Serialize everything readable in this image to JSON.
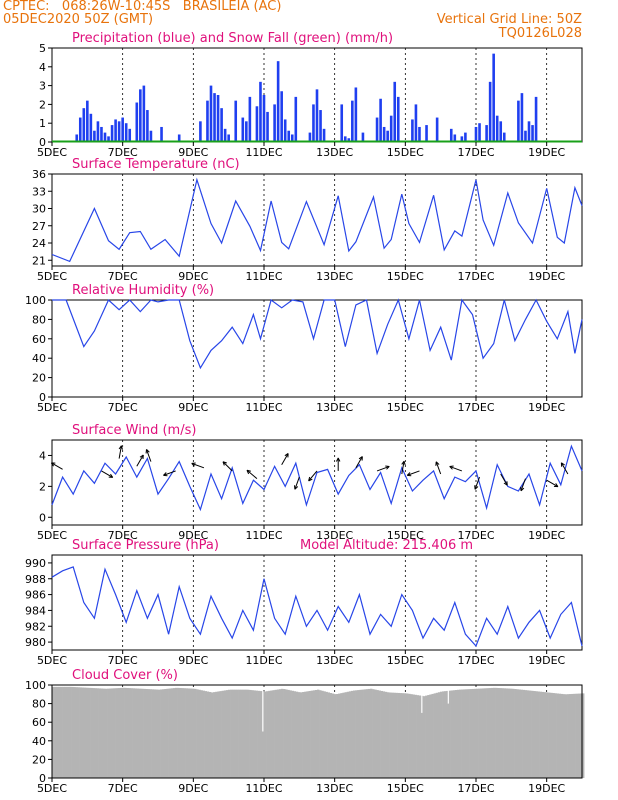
{
  "header": {
    "line1": "CPTEC:   068:26W-10:45S   BRASILEIA (AC)",
    "line2": "05DEC2020 50Z (GMT)",
    "right1": "Vertical Grid Line: 50Z",
    "right2": "TQ0126L028"
  },
  "colors": {
    "header_text": "#e8730c",
    "panel_title": "#e0107c",
    "precip": "#1f3ff0",
    "snow": "#19a019",
    "line": "#2846e8",
    "cloud": "#b4b4b4"
  },
  "chart_data": [
    {
      "type": "bar",
      "title": "Precipitation (blue) and Snow Fall (green) (mm/h)",
      "ylim": [
        0,
        5
      ],
      "y_ticks": [
        "0",
        "1",
        "2",
        "3",
        "4",
        "5"
      ],
      "x_ticks": [
        "5DEC",
        "7DEC",
        "9DEC",
        "11DEC",
        "13DEC",
        "15DEC",
        "17DEC",
        "19DEC"
      ],
      "x_range_days": [
        5,
        20
      ],
      "series": [
        {
          "name": "Precipitation",
          "x": [
            5.7,
            5.8,
            5.9,
            6.0,
            6.1,
            6.2,
            6.3,
            6.4,
            6.5,
            6.6,
            6.7,
            6.8,
            6.9,
            7.0,
            7.1,
            7.2,
            7.4,
            7.5,
            7.6,
            7.7,
            7.8,
            8.1,
            8.6,
            9.2,
            9.4,
            9.5,
            9.6,
            9.7,
            9.8,
            9.9,
            10.0,
            10.2,
            10.4,
            10.5,
            10.6,
            10.8,
            10.9,
            11.0,
            11.1,
            11.3,
            11.4,
            11.5,
            11.6,
            11.7,
            11.8,
            11.9,
            12.3,
            12.4,
            12.5,
            12.6,
            12.7,
            13.2,
            13.3,
            13.4,
            13.5,
            13.6,
            13.8,
            14.2,
            14.3,
            14.4,
            14.5,
            14.6,
            14.7,
            14.8,
            15.2,
            15.3,
            15.4,
            15.6,
            15.9,
            16.3,
            16.4,
            16.6,
            16.7,
            17.0,
            17.1,
            17.3,
            17.4,
            17.5,
            17.6,
            17.7,
            17.8,
            18.2,
            18.3,
            18.4,
            18.5,
            18.6,
            18.7
          ],
          "values": [
            0.4,
            1.3,
            1.8,
            2.2,
            1.5,
            0.6,
            1.1,
            0.8,
            0.5,
            0.3,
            0.9,
            1.2,
            1.1,
            1.3,
            1.0,
            0.7,
            2.1,
            2.8,
            3.0,
            1.7,
            0.6,
            0.8,
            0.4,
            1.1,
            2.2,
            3.0,
            2.6,
            2.5,
            1.8,
            0.7,
            0.4,
            2.2,
            1.3,
            1.1,
            2.4,
            1.9,
            3.2,
            2.5,
            1.6,
            2.0,
            4.3,
            2.7,
            1.2,
            0.6,
            0.4,
            2.4,
            0.5,
            2.0,
            2.8,
            1.7,
            0.7,
            2.0,
            0.3,
            0.2,
            2.2,
            2.9,
            0.5,
            1.3,
            2.3,
            0.8,
            0.6,
            1.4,
            3.2,
            2.4,
            1.2,
            2.0,
            0.8,
            0.9,
            1.3,
            0.7,
            0.4,
            0.3,
            0.5,
            0.8,
            1.0,
            0.9,
            3.2,
            4.7,
            1.4,
            1.1,
            0.5,
            2.2,
            2.6,
            0.6,
            1.1,
            0.9,
            2.4
          ]
        },
        {
          "name": "Snow Fall",
          "x": [
            5.0,
            20.0
          ],
          "values": [
            0.0,
            0.0
          ]
        }
      ]
    },
    {
      "type": "line",
      "title": "Surface Temperature (nC)",
      "ylim": [
        20,
        36
      ],
      "y_ticks": [
        "21",
        "24",
        "27",
        "30",
        "33",
        "36"
      ],
      "x_ticks": [
        "5DEC",
        "7DEC",
        "9DEC",
        "11DEC",
        "13DEC",
        "15DEC",
        "17DEC",
        "19DEC"
      ],
      "x_range_days": [
        5,
        20
      ],
      "series": [
        {
          "name": "Surface Temperature",
          "x": [
            5.0,
            5.5,
            6.2,
            6.6,
            6.9,
            7.2,
            7.5,
            7.8,
            8.2,
            8.6,
            9.1,
            9.5,
            9.8,
            10.2,
            10.6,
            10.9,
            11.2,
            11.5,
            11.7,
            12.2,
            12.7,
            13.1,
            13.4,
            13.6,
            14.1,
            14.4,
            14.6,
            14.9,
            15.1,
            15.4,
            15.8,
            16.1,
            16.4,
            16.6,
            17.0,
            17.2,
            17.5,
            17.9,
            18.2,
            18.6,
            19.0,
            19.3,
            19.5,
            19.8,
            20.0
          ],
          "values": [
            22.0,
            20.8,
            30.0,
            24.4,
            22.9,
            25.8,
            26.0,
            22.9,
            24.6,
            21.7,
            35.0,
            27.4,
            24.0,
            31.3,
            26.9,
            22.7,
            31.3,
            24.1,
            23.0,
            31.2,
            23.7,
            32.2,
            22.6,
            24.2,
            32.0,
            23.1,
            24.6,
            32.5,
            27.4,
            24.1,
            32.3,
            22.8,
            26.1,
            25.2,
            35.0,
            28.0,
            23.6,
            32.7,
            27.5,
            24.0,
            33.5,
            25.0,
            24.0,
            33.6,
            30.5
          ]
        }
      ]
    },
    {
      "type": "line",
      "title": "Relative Humidity (%)",
      "ylim": [
        0,
        100
      ],
      "y_ticks": [
        "0",
        "20",
        "40",
        "60",
        "80",
        "100"
      ],
      "x_ticks": [
        "5DEC",
        "7DEC",
        "9DEC",
        "11DEC",
        "13DEC",
        "15DEC",
        "17DEC",
        "19DEC"
      ],
      "x_range_days": [
        5,
        20
      ],
      "series": [
        {
          "name": "Relative Humidity",
          "x": [
            5.0,
            5.4,
            5.9,
            6.2,
            6.6,
            6.9,
            7.2,
            7.5,
            7.8,
            8.0,
            8.3,
            8.6,
            8.9,
            9.2,
            9.5,
            9.8,
            10.1,
            10.4,
            10.7,
            10.9,
            11.2,
            11.5,
            11.8,
            12.1,
            12.4,
            12.7,
            13.0,
            13.3,
            13.6,
            13.9,
            14.2,
            14.5,
            14.8,
            15.1,
            15.4,
            15.7,
            16.0,
            16.3,
            16.6,
            16.9,
            17.2,
            17.5,
            17.8,
            18.1,
            18.4,
            18.7,
            19.0,
            19.3,
            19.6,
            19.8,
            20.0
          ],
          "values": [
            100,
            100,
            52,
            68,
            100,
            90,
            100,
            88,
            100,
            98,
            100,
            100,
            58,
            30,
            48,
            58,
            72,
            55,
            85,
            60,
            100,
            92,
            100,
            98,
            60,
            100,
            100,
            52,
            95,
            100,
            45,
            75,
            100,
            60,
            100,
            48,
            72,
            38,
            100,
            85,
            40,
            55,
            100,
            58,
            80,
            100,
            78,
            60,
            88,
            45,
            80
          ]
        }
      ]
    },
    {
      "type": "line",
      "title": "Surface Wind (m/s)",
      "ylim": [
        -0.5,
        5
      ],
      "y_ticks": [
        "0",
        "2",
        "4"
      ],
      "x_ticks": [
        "5DEC",
        "7DEC",
        "9DEC",
        "11DEC",
        "13DEC",
        "15DEC",
        "17DEC",
        "19DEC"
      ],
      "x_range_days": [
        5,
        20
      ],
      "series": [
        {
          "name": "Surface Wind speed",
          "x": [
            5.0,
            5.3,
            5.6,
            5.9,
            6.2,
            6.5,
            6.8,
            7.1,
            7.4,
            7.7,
            8.0,
            8.3,
            8.6,
            8.9,
            9.2,
            9.5,
            9.8,
            10.1,
            10.4,
            10.7,
            11.0,
            11.3,
            11.6,
            11.9,
            12.2,
            12.5,
            12.8,
            13.1,
            13.4,
            13.7,
            14.0,
            14.3,
            14.6,
            14.9,
            15.2,
            15.5,
            15.8,
            16.1,
            16.4,
            16.7,
            17.0,
            17.3,
            17.6,
            17.9,
            18.2,
            18.5,
            18.8,
            19.1,
            19.4,
            19.7,
            20.0
          ],
          "values": [
            0.8,
            2.6,
            1.5,
            3.0,
            2.2,
            3.5,
            2.8,
            3.9,
            2.6,
            3.8,
            1.5,
            2.5,
            3.6,
            2.0,
            0.5,
            2.8,
            1.2,
            3.2,
            0.9,
            2.4,
            1.8,
            3.3,
            2.0,
            3.5,
            0.8,
            2.9,
            3.1,
            1.5,
            2.7,
            3.4,
            1.8,
            2.9,
            0.9,
            3.2,
            1.7,
            2.4,
            3.0,
            1.2,
            2.6,
            2.3,
            3.0,
            0.6,
            3.4,
            2.0,
            1.7,
            2.8,
            0.8,
            3.5,
            2.1,
            4.6,
            3.0
          ]
        }
      ],
      "wind_arrows": [
        {
          "x": 5.3,
          "speed": 3.1,
          "dir_deg": 150
        },
        {
          "x": 6.4,
          "speed": 3.0,
          "dir_deg": 330
        },
        {
          "x": 6.9,
          "speed": 3.8,
          "dir_deg": 80
        },
        {
          "x": 7.4,
          "speed": 3.3,
          "dir_deg": 60
        },
        {
          "x": 7.8,
          "speed": 3.6,
          "dir_deg": 110
        },
        {
          "x": 8.5,
          "speed": 3.0,
          "dir_deg": 200
        },
        {
          "x": 9.3,
          "speed": 3.2,
          "dir_deg": 160
        },
        {
          "x": 10.1,
          "speed": 3.0,
          "dir_deg": 135
        },
        {
          "x": 10.8,
          "speed": 2.5,
          "dir_deg": 140
        },
        {
          "x": 11.5,
          "speed": 3.4,
          "dir_deg": 60
        },
        {
          "x": 12.0,
          "speed": 2.6,
          "dir_deg": 250
        },
        {
          "x": 12.5,
          "speed": 3.0,
          "dir_deg": 230
        },
        {
          "x": 13.1,
          "speed": 3.0,
          "dir_deg": 90
        },
        {
          "x": 13.6,
          "speed": 3.2,
          "dir_deg": 60
        },
        {
          "x": 14.2,
          "speed": 3.0,
          "dir_deg": 20
        },
        {
          "x": 14.9,
          "speed": 2.8,
          "dir_deg": 80
        },
        {
          "x": 15.4,
          "speed": 3.0,
          "dir_deg": 200
        },
        {
          "x": 16.0,
          "speed": 2.8,
          "dir_deg": 110
        },
        {
          "x": 16.6,
          "speed": 3.0,
          "dir_deg": 160
        },
        {
          "x": 17.1,
          "speed": 2.6,
          "dir_deg": 250
        },
        {
          "x": 17.7,
          "speed": 2.8,
          "dir_deg": 300
        },
        {
          "x": 18.4,
          "speed": 2.5,
          "dir_deg": 250
        },
        {
          "x": 19.0,
          "speed": 2.4,
          "dir_deg": 330
        },
        {
          "x": 19.6,
          "speed": 2.8,
          "dir_deg": 120
        }
      ]
    },
    {
      "type": "line",
      "title": "Surface Pressure (hPa)",
      "annotation": "Model Altitude: 215.406 m",
      "ylim": [
        979,
        991
      ],
      "y_ticks": [
        "980",
        "982",
        "984",
        "986",
        "988",
        "990"
      ],
      "x_ticks": [
        "5DEC",
        "7DEC",
        "9DEC",
        "11DEC",
        "13DEC",
        "15DEC",
        "17DEC",
        "19DEC"
      ],
      "x_range_days": [
        5,
        20
      ],
      "series": [
        {
          "name": "Surface Pressure",
          "x": [
            5.0,
            5.3,
            5.6,
            5.9,
            6.2,
            6.5,
            6.8,
            7.1,
            7.4,
            7.7,
            8.0,
            8.3,
            8.6,
            8.9,
            9.2,
            9.5,
            9.8,
            10.1,
            10.4,
            10.7,
            11.0,
            11.3,
            11.6,
            11.9,
            12.2,
            12.5,
            12.8,
            13.1,
            13.4,
            13.7,
            14.0,
            14.3,
            14.6,
            14.9,
            15.2,
            15.5,
            15.8,
            16.1,
            16.4,
            16.7,
            17.0,
            17.3,
            17.6,
            17.9,
            18.2,
            18.5,
            18.8,
            19.1,
            19.4,
            19.7,
            20.0
          ],
          "values": [
            988.2,
            989.0,
            989.5,
            985.0,
            983.0,
            989.2,
            986.0,
            982.5,
            986.5,
            983.0,
            986.0,
            981.0,
            987.0,
            983.0,
            981.0,
            985.8,
            983.0,
            980.5,
            984.0,
            981.5,
            988.0,
            983.0,
            981.0,
            985.8,
            982.0,
            984.0,
            981.5,
            984.5,
            982.5,
            986.0,
            981.0,
            983.5,
            982.0,
            986.0,
            984.0,
            980.5,
            983.0,
            981.5,
            985.0,
            981.0,
            979.5,
            983.0,
            981.0,
            984.5,
            980.5,
            982.5,
            984.0,
            980.5,
            983.5,
            985.0,
            979.5
          ]
        }
      ]
    },
    {
      "type": "area",
      "title": "Cloud Cover (%)",
      "ylim": [
        0,
        100
      ],
      "y_ticks": [
        "0",
        "20",
        "40",
        "60",
        "80",
        "100"
      ],
      "x_ticks": [
        "5DEC",
        "7DEC",
        "9DEC",
        "11DEC",
        "13DEC",
        "15DEC",
        "17DEC",
        "19DEC"
      ],
      "x_range_days": [
        5,
        20
      ],
      "series": [
        {
          "name": "Cloud Cover",
          "x": [
            5.0,
            5.5,
            6.0,
            6.5,
            7.0,
            7.5,
            8.0,
            8.5,
            9.0,
            9.5,
            10.0,
            10.5,
            11.0,
            11.5,
            12.0,
            12.5,
            13.0,
            13.5,
            14.0,
            14.5,
            15.0,
            15.5,
            16.0,
            16.5,
            17.0,
            17.5,
            18.0,
            18.5,
            19.0,
            19.5,
            20.0
          ],
          "values": [
            98,
            98,
            97,
            96,
            97,
            96,
            95,
            97,
            96,
            92,
            95,
            95,
            93,
            96,
            92,
            95,
            90,
            94,
            96,
            92,
            91,
            88,
            93,
            95,
            96,
            97,
            96,
            94,
            92,
            90,
            91
          ]
        }
      ]
    }
  ]
}
